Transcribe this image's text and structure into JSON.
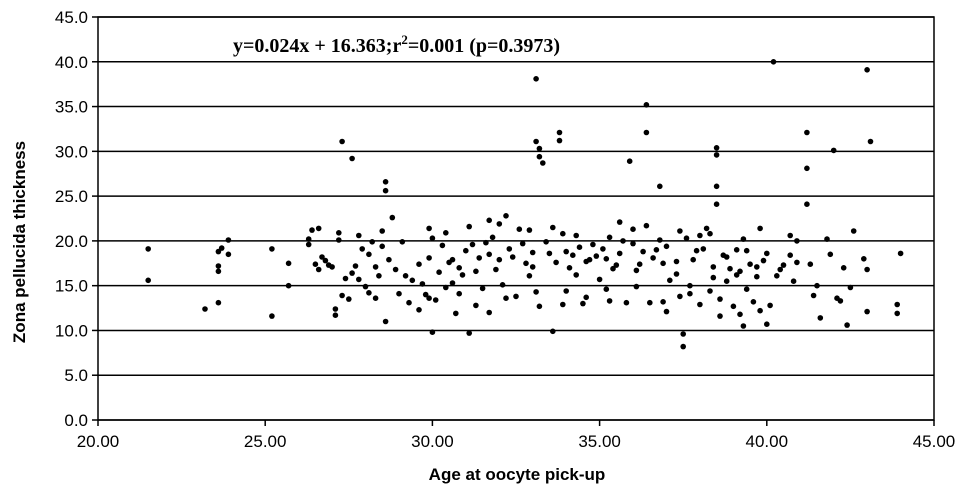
{
  "chart_data": {
    "type": "scatter",
    "xlabel": "Age at oocyte pick-up",
    "ylabel": "Zona pellucida thickness",
    "xlim": [
      20,
      45
    ],
    "ylim": [
      0,
      45
    ],
    "xticks": [
      "20.00",
      "25.00",
      "30.00",
      "35.00",
      "40.00",
      "45.00"
    ],
    "yticks": [
      "0.0",
      "5.0",
      "10.0",
      "15.0",
      "20.0",
      "25.0",
      "30.0",
      "35.0",
      "40.0",
      "45.0"
    ],
    "grid": "horizontal",
    "point_color": "#000000",
    "annotation": {
      "part1": "y=0.024x + 16.363;r",
      "sup": "2",
      "part2": "=0.001 (p=0.3973)"
    },
    "points": [
      [
        21.5,
        19.1
      ],
      [
        21.5,
        15.6
      ],
      [
        23.2,
        12.4
      ],
      [
        23.6,
        13.1
      ],
      [
        23.6,
        16.6
      ],
      [
        23.6,
        17.2
      ],
      [
        23.6,
        18.8
      ],
      [
        23.7,
        19.2
      ],
      [
        23.9,
        18.5
      ],
      [
        23.9,
        20.1
      ],
      [
        25.2,
        11.6
      ],
      [
        25.2,
        19.1
      ],
      [
        25.7,
        17.5
      ],
      [
        25.7,
        15.0
      ],
      [
        26.3,
        19.6
      ],
      [
        26.3,
        20.2
      ],
      [
        26.4,
        21.2
      ],
      [
        26.5,
        17.4
      ],
      [
        26.6,
        16.8
      ],
      [
        26.8,
        17.8
      ],
      [
        26.9,
        17.3
      ],
      [
        27.0,
        17.1
      ],
      [
        27.1,
        12.4
      ],
      [
        27.1,
        11.7
      ],
      [
        27.2,
        20.1
      ],
      [
        27.2,
        20.9
      ],
      [
        27.3,
        31.1
      ],
      [
        27.6,
        29.2
      ],
      [
        27.5,
        13.5
      ],
      [
        27.6,
        16.4
      ],
      [
        27.7,
        17.2
      ],
      [
        27.8,
        15.7
      ],
      [
        28.0,
        14.9
      ],
      [
        28.1,
        18.5
      ],
      [
        28.2,
        19.9
      ],
      [
        28.3,
        13.6
      ],
      [
        28.4,
        16.1
      ],
      [
        28.5,
        19.4
      ],
      [
        28.6,
        26.6
      ],
      [
        28.6,
        25.6
      ],
      [
        28.6,
        11.0
      ],
      [
        28.7,
        17.9
      ],
      [
        28.8,
        22.6
      ],
      [
        29.0,
        14.1
      ],
      [
        29.1,
        19.9
      ],
      [
        29.2,
        16.1
      ],
      [
        29.6,
        17.4
      ],
      [
        29.7,
        15.2
      ],
      [
        29.8,
        14.0
      ],
      [
        29.9,
        13.6
      ],
      [
        30.0,
        9.8
      ],
      [
        30.0,
        20.3
      ],
      [
        30.2,
        16.5
      ],
      [
        30.4,
        14.8
      ],
      [
        30.5,
        17.6
      ],
      [
        30.6,
        15.3
      ],
      [
        30.7,
        11.9
      ],
      [
        30.8,
        17.0
      ],
      [
        31.0,
        18.9
      ],
      [
        31.1,
        9.7
      ],
      [
        31.2,
        19.6
      ],
      [
        31.3,
        16.6
      ],
      [
        31.5,
        14.7
      ],
      [
        31.7,
        18.5
      ],
      [
        31.7,
        12.0
      ],
      [
        31.8,
        20.4
      ],
      [
        32.0,
        17.9
      ],
      [
        32.1,
        15.1
      ],
      [
        32.2,
        22.8
      ],
      [
        32.3,
        19.1
      ],
      [
        32.5,
        13.8
      ],
      [
        32.6,
        21.3
      ],
      [
        32.8,
        17.5
      ],
      [
        32.9,
        16.1
      ],
      [
        33.0,
        18.7
      ],
      [
        33.1,
        38.1
      ],
      [
        33.1,
        31.1
      ],
      [
        33.2,
        30.3
      ],
      [
        33.2,
        29.4
      ],
      [
        33.3,
        28.7
      ],
      [
        33.2,
        12.7
      ],
      [
        33.5,
        18.6
      ],
      [
        33.6,
        9.9
      ],
      [
        33.8,
        32.1
      ],
      [
        33.8,
        31.2
      ],
      [
        33.9,
        20.8
      ],
      [
        34.0,
        14.4
      ],
      [
        34.1,
        17.0
      ],
      [
        34.2,
        18.4
      ],
      [
        34.3,
        16.2
      ],
      [
        34.5,
        13.0
      ],
      [
        34.7,
        17.9
      ],
      [
        34.8,
        19.6
      ],
      [
        35.0,
        15.7
      ],
      [
        35.2,
        18.0
      ],
      [
        35.3,
        13.3
      ],
      [
        35.5,
        17.3
      ],
      [
        35.7,
        20.0
      ],
      [
        35.8,
        13.1
      ],
      [
        35.9,
        28.9
      ],
      [
        36.0,
        21.3
      ],
      [
        36.1,
        16.7
      ],
      [
        36.3,
        18.8
      ],
      [
        36.4,
        35.2
      ],
      [
        36.4,
        32.1
      ],
      [
        36.5,
        13.1
      ],
      [
        36.7,
        19.0
      ],
      [
        36.8,
        26.1
      ],
      [
        36.9,
        17.5
      ],
      [
        37.0,
        12.1
      ],
      [
        37.1,
        15.6
      ],
      [
        37.3,
        17.7
      ],
      [
        37.4,
        13.8
      ],
      [
        37.5,
        8.2
      ],
      [
        37.5,
        9.6
      ],
      [
        37.6,
        20.3
      ],
      [
        37.7,
        15.0
      ],
      [
        37.9,
        18.9
      ],
      [
        38.0,
        12.9
      ],
      [
        38.2,
        21.4
      ],
      [
        38.3,
        14.4
      ],
      [
        38.4,
        17.1
      ],
      [
        38.5,
        30.4
      ],
      [
        38.5,
        29.6
      ],
      [
        38.5,
        26.1
      ],
      [
        38.5,
        24.1
      ],
      [
        38.6,
        11.6
      ],
      [
        38.7,
        18.4
      ],
      [
        38.8,
        15.5
      ],
      [
        38.9,
        16.9
      ],
      [
        39.0,
        12.7
      ],
      [
        39.1,
        19.0
      ],
      [
        39.2,
        16.6
      ],
      [
        39.3,
        10.5
      ],
      [
        39.4,
        14.6
      ],
      [
        39.5,
        17.4
      ],
      [
        39.6,
        13.2
      ],
      [
        39.7,
        16.0
      ],
      [
        39.8,
        21.4
      ],
      [
        39.9,
        17.8
      ],
      [
        40.0,
        10.7
      ],
      [
        40.1,
        12.8
      ],
      [
        40.2,
        40.0
      ],
      [
        40.3,
        16.1
      ],
      [
        40.5,
        17.3
      ],
      [
        40.7,
        18.4
      ],
      [
        40.8,
        15.5
      ],
      [
        40.9,
        20.0
      ],
      [
        41.2,
        32.1
      ],
      [
        41.2,
        28.1
      ],
      [
        41.2,
        24.1
      ],
      [
        41.3,
        17.4
      ],
      [
        41.5,
        15.0
      ],
      [
        41.6,
        11.4
      ],
      [
        41.8,
        20.2
      ],
      [
        41.9,
        18.5
      ],
      [
        42.0,
        30.1
      ],
      [
        42.1,
        13.6
      ],
      [
        42.3,
        17.0
      ],
      [
        42.4,
        10.6
      ],
      [
        42.5,
        14.8
      ],
      [
        42.6,
        21.1
      ],
      [
        42.9,
        18.0
      ],
      [
        43.0,
        12.1
      ],
      [
        43.0,
        39.1
      ],
      [
        43.1,
        31.1
      ],
      [
        43.9,
        12.9
      ],
      [
        43.9,
        11.9
      ],
      [
        44.0,
        18.6
      ],
      [
        43.0,
        16.8
      ],
      [
        26.7,
        18.2
      ],
      [
        27.4,
        15.8
      ],
      [
        27.9,
        19.1
      ],
      [
        28.3,
        17.1
      ],
      [
        28.9,
        16.8
      ],
      [
        29.4,
        15.6
      ],
      [
        29.9,
        18.1
      ],
      [
        30.3,
        19.5
      ],
      [
        30.6,
        17.9
      ],
      [
        30.9,
        16.2
      ],
      [
        31.4,
        18.1
      ],
      [
        31.6,
        19.8
      ],
      [
        31.9,
        16.8
      ],
      [
        32.4,
        18.2
      ],
      [
        32.7,
        19.7
      ],
      [
        33.0,
        17.1
      ],
      [
        33.4,
        19.9
      ],
      [
        33.7,
        17.6
      ],
      [
        34.0,
        18.8
      ],
      [
        34.4,
        19.3
      ],
      [
        34.6,
        17.7
      ],
      [
        34.9,
        18.3
      ],
      [
        35.1,
        19.1
      ],
      [
        35.4,
        16.9
      ],
      [
        35.6,
        18.6
      ],
      [
        36.0,
        19.7
      ],
      [
        36.2,
        17.4
      ],
      [
        36.6,
        18.1
      ],
      [
        37.0,
        19.4
      ],
      [
        37.3,
        16.3
      ],
      [
        37.8,
        17.9
      ],
      [
        38.1,
        19.1
      ],
      [
        38.4,
        15.9
      ],
      [
        38.8,
        18.2
      ],
      [
        39.1,
        16.2
      ],
      [
        39.4,
        18.9
      ],
      [
        39.7,
        17.1
      ],
      [
        40.0,
        18.6
      ],
      [
        40.4,
        16.8
      ],
      [
        40.9,
        17.6
      ],
      [
        28.1,
        14.2
      ],
      [
        29.3,
        13.1
      ],
      [
        30.1,
        13.4
      ],
      [
        30.8,
        14.1
      ],
      [
        31.3,
        12.8
      ],
      [
        32.2,
        13.6
      ],
      [
        33.1,
        14.3
      ],
      [
        33.9,
        12.9
      ],
      [
        34.6,
        13.7
      ],
      [
        35.2,
        14.6
      ],
      [
        36.1,
        14.9
      ],
      [
        36.9,
        13.2
      ],
      [
        37.7,
        14.1
      ],
      [
        38.6,
        13.5
      ],
      [
        39.2,
        11.8
      ],
      [
        39.8,
        12.2
      ],
      [
        41.4,
        13.9
      ],
      [
        42.2,
        13.3
      ],
      [
        27.3,
        13.9
      ],
      [
        29.6,
        12.3
      ],
      [
        30.4,
        20.9
      ],
      [
        31.1,
        21.6
      ],
      [
        32.0,
        21.9
      ],
      [
        32.9,
        21.2
      ],
      [
        33.6,
        21.5
      ],
      [
        34.3,
        20.6
      ],
      [
        35.3,
        20.4
      ],
      [
        36.4,
        21.7
      ],
      [
        37.4,
        21.1
      ],
      [
        38.3,
        20.8
      ],
      [
        39.3,
        20.2
      ],
      [
        40.7,
        20.6
      ],
      [
        28.5,
        21.1
      ],
      [
        27.8,
        20.6
      ],
      [
        26.6,
        21.4
      ],
      [
        29.9,
        21.4
      ],
      [
        31.7,
        22.3
      ],
      [
        36.8,
        20.1
      ],
      [
        38.0,
        20.6
      ],
      [
        35.6,
        22.1
      ]
    ]
  }
}
